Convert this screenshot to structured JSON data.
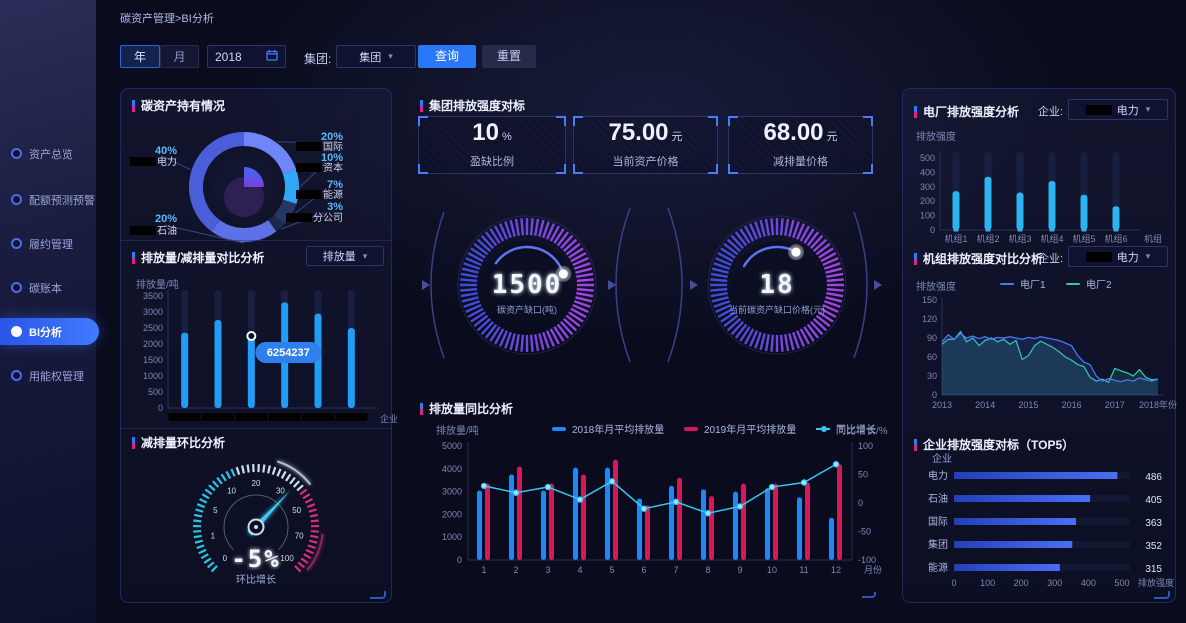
{
  "breadcrumb": "碳资产管理>BI分析",
  "sidebar": {
    "items": [
      {
        "label": "资产总览"
      },
      {
        "label": "配额预测预警"
      },
      {
        "label": "履约管理"
      },
      {
        "label": "碳账本"
      },
      {
        "label": "BI分析",
        "active": true
      },
      {
        "label": "用能权管理"
      }
    ]
  },
  "filters": {
    "year_tab": "年",
    "month_tab": "月",
    "year_value": "2018",
    "group_label": "集团:",
    "group_value": "集团",
    "query_btn": "查询",
    "reset_btn": "重置"
  },
  "left_panel": {
    "holdings_title": "碳资产持有情况",
    "compare_title": "排放量/减排量对比分析",
    "compare_select": "排放量",
    "mom_title": "减排量环比分析"
  },
  "middle": {
    "benchmark_title": "集团排放强度对标",
    "cards": [
      {
        "value": "10",
        "unit": "%",
        "label": "盈缺比例"
      },
      {
        "value": "75.00",
        "unit": "元",
        "label": "当前资产价格"
      },
      {
        "value": "68.00",
        "unit": "元",
        "label": "减排量价格"
      }
    ],
    "yoy_title": "排放量同比分析"
  },
  "right_panel": {
    "plant_title": "电厂排放强度分析",
    "plant_enterprise_label": "企业:",
    "plant_enterprise_value": "电力",
    "unit_title": "机组排放强度对比分析",
    "unit_enterprise_label": "企业:",
    "unit_enterprise_value": "电力",
    "top5_title": "企业排放强度对标（TOP5）"
  },
  "chart_data": [
    {
      "key": "holdings_donut",
      "type": "pie",
      "title": "碳资产持有情况",
      "segments": [
        {
          "label": "国际",
          "pct": 20,
          "color": "#6e86f7",
          "side": "right",
          "slot": 0,
          "redacted": true
        },
        {
          "label": "资本",
          "pct": 10,
          "color": "#2fa8f5",
          "side": "right",
          "slot": 1,
          "redacted": true
        },
        {
          "label": "能源",
          "pct": 7,
          "color": "#273764",
          "side": "right",
          "slot": 2,
          "redacted": true
        },
        {
          "label": "分公司",
          "pct": 3,
          "color": "#1e2848",
          "side": "right",
          "slot": 3,
          "redacted": true
        },
        {
          "label": "石油",
          "pct": 20,
          "color": "#5c71e6",
          "side": "left",
          "slot": 1,
          "redacted": true
        },
        {
          "label": "电力",
          "pct": 40,
          "color": "#4a5ed9",
          "side": "left",
          "slot": 0,
          "redacted": true
        }
      ]
    },
    {
      "key": "emission_bars",
      "type": "bar",
      "title": "排放量/减排量对比分析",
      "ylabel": "排放量/吨",
      "xlabel": "企业",
      "yticks": [
        0,
        500,
        1000,
        1500,
        2000,
        2500,
        3000,
        3500
      ],
      "ylim": [
        0,
        3500
      ],
      "categories_redacted": true,
      "values": [
        2350,
        2750,
        2250,
        3300,
        2950,
        2500
      ],
      "bar_color": "#219df5",
      "tooltip": {
        "bar_index": 2,
        "text": "6254237"
      }
    },
    {
      "key": "mom_gauge",
      "type": "gauge",
      "title": "减排量环比分析",
      "tick_labels": [
        0,
        1,
        5,
        10,
        20,
        30,
        50,
        70,
        100
      ],
      "needle_fraction": 0.66,
      "value": "-5%",
      "caption": "环比增长"
    },
    {
      "key": "gap_ring",
      "type": "ring-gauge",
      "value": "1500",
      "label": "碳资产缺口(吨)",
      "arc_start_deg": -55,
      "arc_end_deg": 73
    },
    {
      "key": "price_ring",
      "type": "ring-gauge",
      "value": "18",
      "label": "当前碳资产缺口价格(元)",
      "arc_start_deg": -60,
      "arc_end_deg": 30
    },
    {
      "key": "yoy_combo",
      "type": "bar+line",
      "title": "排放量同比分析",
      "left_axis_label": "排放量/吨",
      "right_axis_label": "同比增长/%",
      "xlabel": "月份",
      "categories": [
        "1",
        "2",
        "3",
        "4",
        "5",
        "6",
        "7",
        "8",
        "9",
        "10",
        "11",
        "12"
      ],
      "yticks_left": [
        0,
        1000,
        2000,
        3000,
        4000,
        5000
      ],
      "yticks_right": [
        -100,
        -50,
        0,
        50,
        100
      ],
      "series": [
        {
          "name": "2018年月平均排放量",
          "color": "#1e86ff",
          "values": [
            3050,
            3750,
            3050,
            4050,
            4050,
            2700,
            3250,
            3100,
            3000,
            3150,
            2750,
            1850
          ]
        },
        {
          "name": "2019年月平均排放量",
          "color": "#d6175e",
          "values": [
            3350,
            4100,
            3350,
            3750,
            4400,
            2400,
            3600,
            2800,
            3350,
            3350,
            3400,
            4200
          ]
        }
      ],
      "growth": {
        "name": "同比增长",
        "color": "#35c9f2",
        "values": [
          30,
          18,
          28,
          6,
          38,
          -10,
          2,
          -18,
          -6,
          28,
          36,
          68
        ]
      }
    },
    {
      "key": "plant_bars",
      "type": "bar",
      "title": "电厂排放强度分析",
      "ylabel": "排放强度",
      "xlabel": "机组",
      "yticks": [
        0,
        100,
        200,
        300,
        400,
        500
      ],
      "ylim": [
        0,
        500
      ],
      "categories": [
        "机组1",
        "机组2",
        "机组3",
        "机组4",
        "机组5",
        "机组6"
      ],
      "values": [
        270,
        370,
        260,
        340,
        245,
        165
      ],
      "bar_color": "#2db4f2"
    },
    {
      "key": "unit_lines",
      "type": "line",
      "title": "机组排放强度对比分析",
      "ylabel": "排放强度",
      "yticks": [
        0,
        30,
        60,
        90,
        120,
        150
      ],
      "ylim": [
        0,
        150
      ],
      "x_labels": [
        "2013",
        "2014",
        "2015",
        "2016",
        "2017",
        "2018年份"
      ],
      "series": [
        {
          "name": "电厂1",
          "color": "#4a78f5",
          "values": [
            84,
            95,
            88,
            97,
            90,
            93,
            89,
            92,
            88,
            91,
            90,
            92,
            90,
            88,
            91,
            89,
            92,
            90,
            88,
            86,
            82,
            78,
            62,
            52,
            48,
            30,
            22,
            26,
            23,
            21,
            24,
            22,
            27,
            24,
            22,
            25
          ]
        },
        {
          "name": "电厂2",
          "color": "#2fc9b0",
          "values": [
            80,
            88,
            88,
            100,
            84,
            90,
            78,
            86,
            90,
            84,
            88,
            80,
            86,
            56,
            62,
            78,
            85,
            80,
            75,
            68,
            60,
            55,
            48,
            45,
            28,
            22,
            25,
            20,
            42,
            38,
            35,
            30,
            40,
            28,
            24,
            25
          ]
        }
      ]
    },
    {
      "key": "top5_bars",
      "type": "bar",
      "title": "企业排放强度对标（TOP5）",
      "orientation": "horizontal",
      "ylabel": "企业",
      "xlabel": "排放强度",
      "xticks": [
        0,
        100,
        200,
        300,
        400,
        500
      ],
      "xlim": [
        0,
        500
      ],
      "categories": [
        "电力",
        "石油",
        "国际",
        "集团",
        "能源"
      ],
      "values": [
        486,
        405,
        363,
        352,
        315
      ]
    }
  ]
}
